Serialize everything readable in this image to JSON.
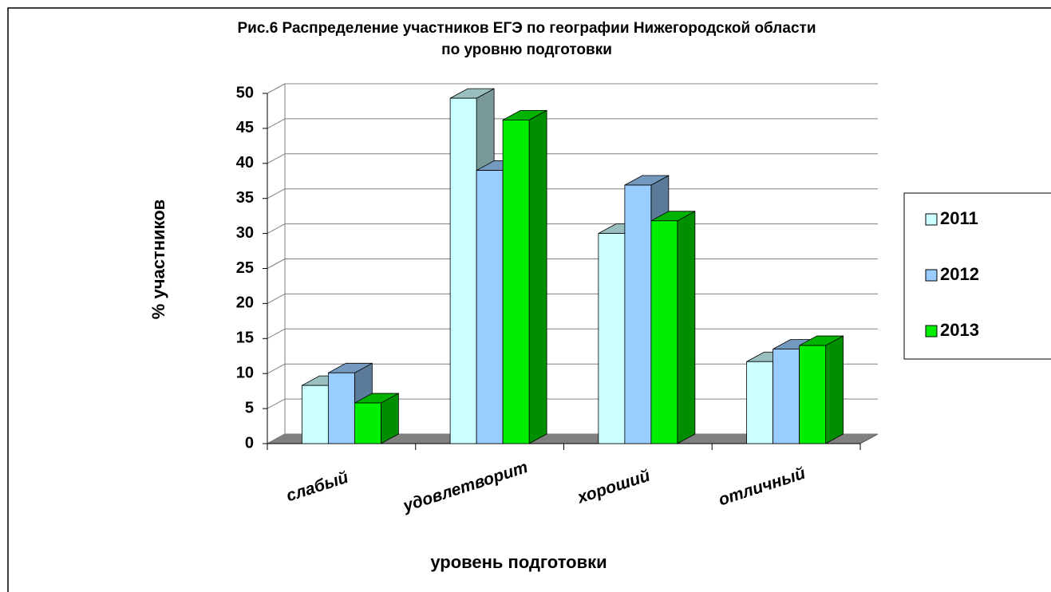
{
  "chart_data": {
    "type": "bar3d",
    "title": "Рис.6 Распределение участников ЕГЭ по географии Нижегородской области",
    "subtitle": "по уровню подготовки",
    "x_label": "уровень подготовки",
    "y_label": "% участников",
    "categories": [
      "слабый",
      "удовлетворит",
      "хороший",
      "отличный"
    ],
    "series": [
      {
        "name": "2011",
        "color": "#ccffff",
        "values": [
          8.3,
          49.3,
          30,
          11.7
        ]
      },
      {
        "name": "2012",
        "color": "#99ccff",
        "values": [
          10.1,
          39,
          36.9,
          13.5
        ]
      },
      {
        "name": "2013",
        "color": "#00ee00",
        "values": [
          5.8,
          46.2,
          31.8,
          14
        ]
      }
    ],
    "ylim": [
      0,
      50
    ],
    "yticks": [
      0,
      5,
      10,
      15,
      20,
      25,
      30,
      35,
      40,
      45,
      50
    ],
    "grid": true,
    "legend": "right"
  }
}
